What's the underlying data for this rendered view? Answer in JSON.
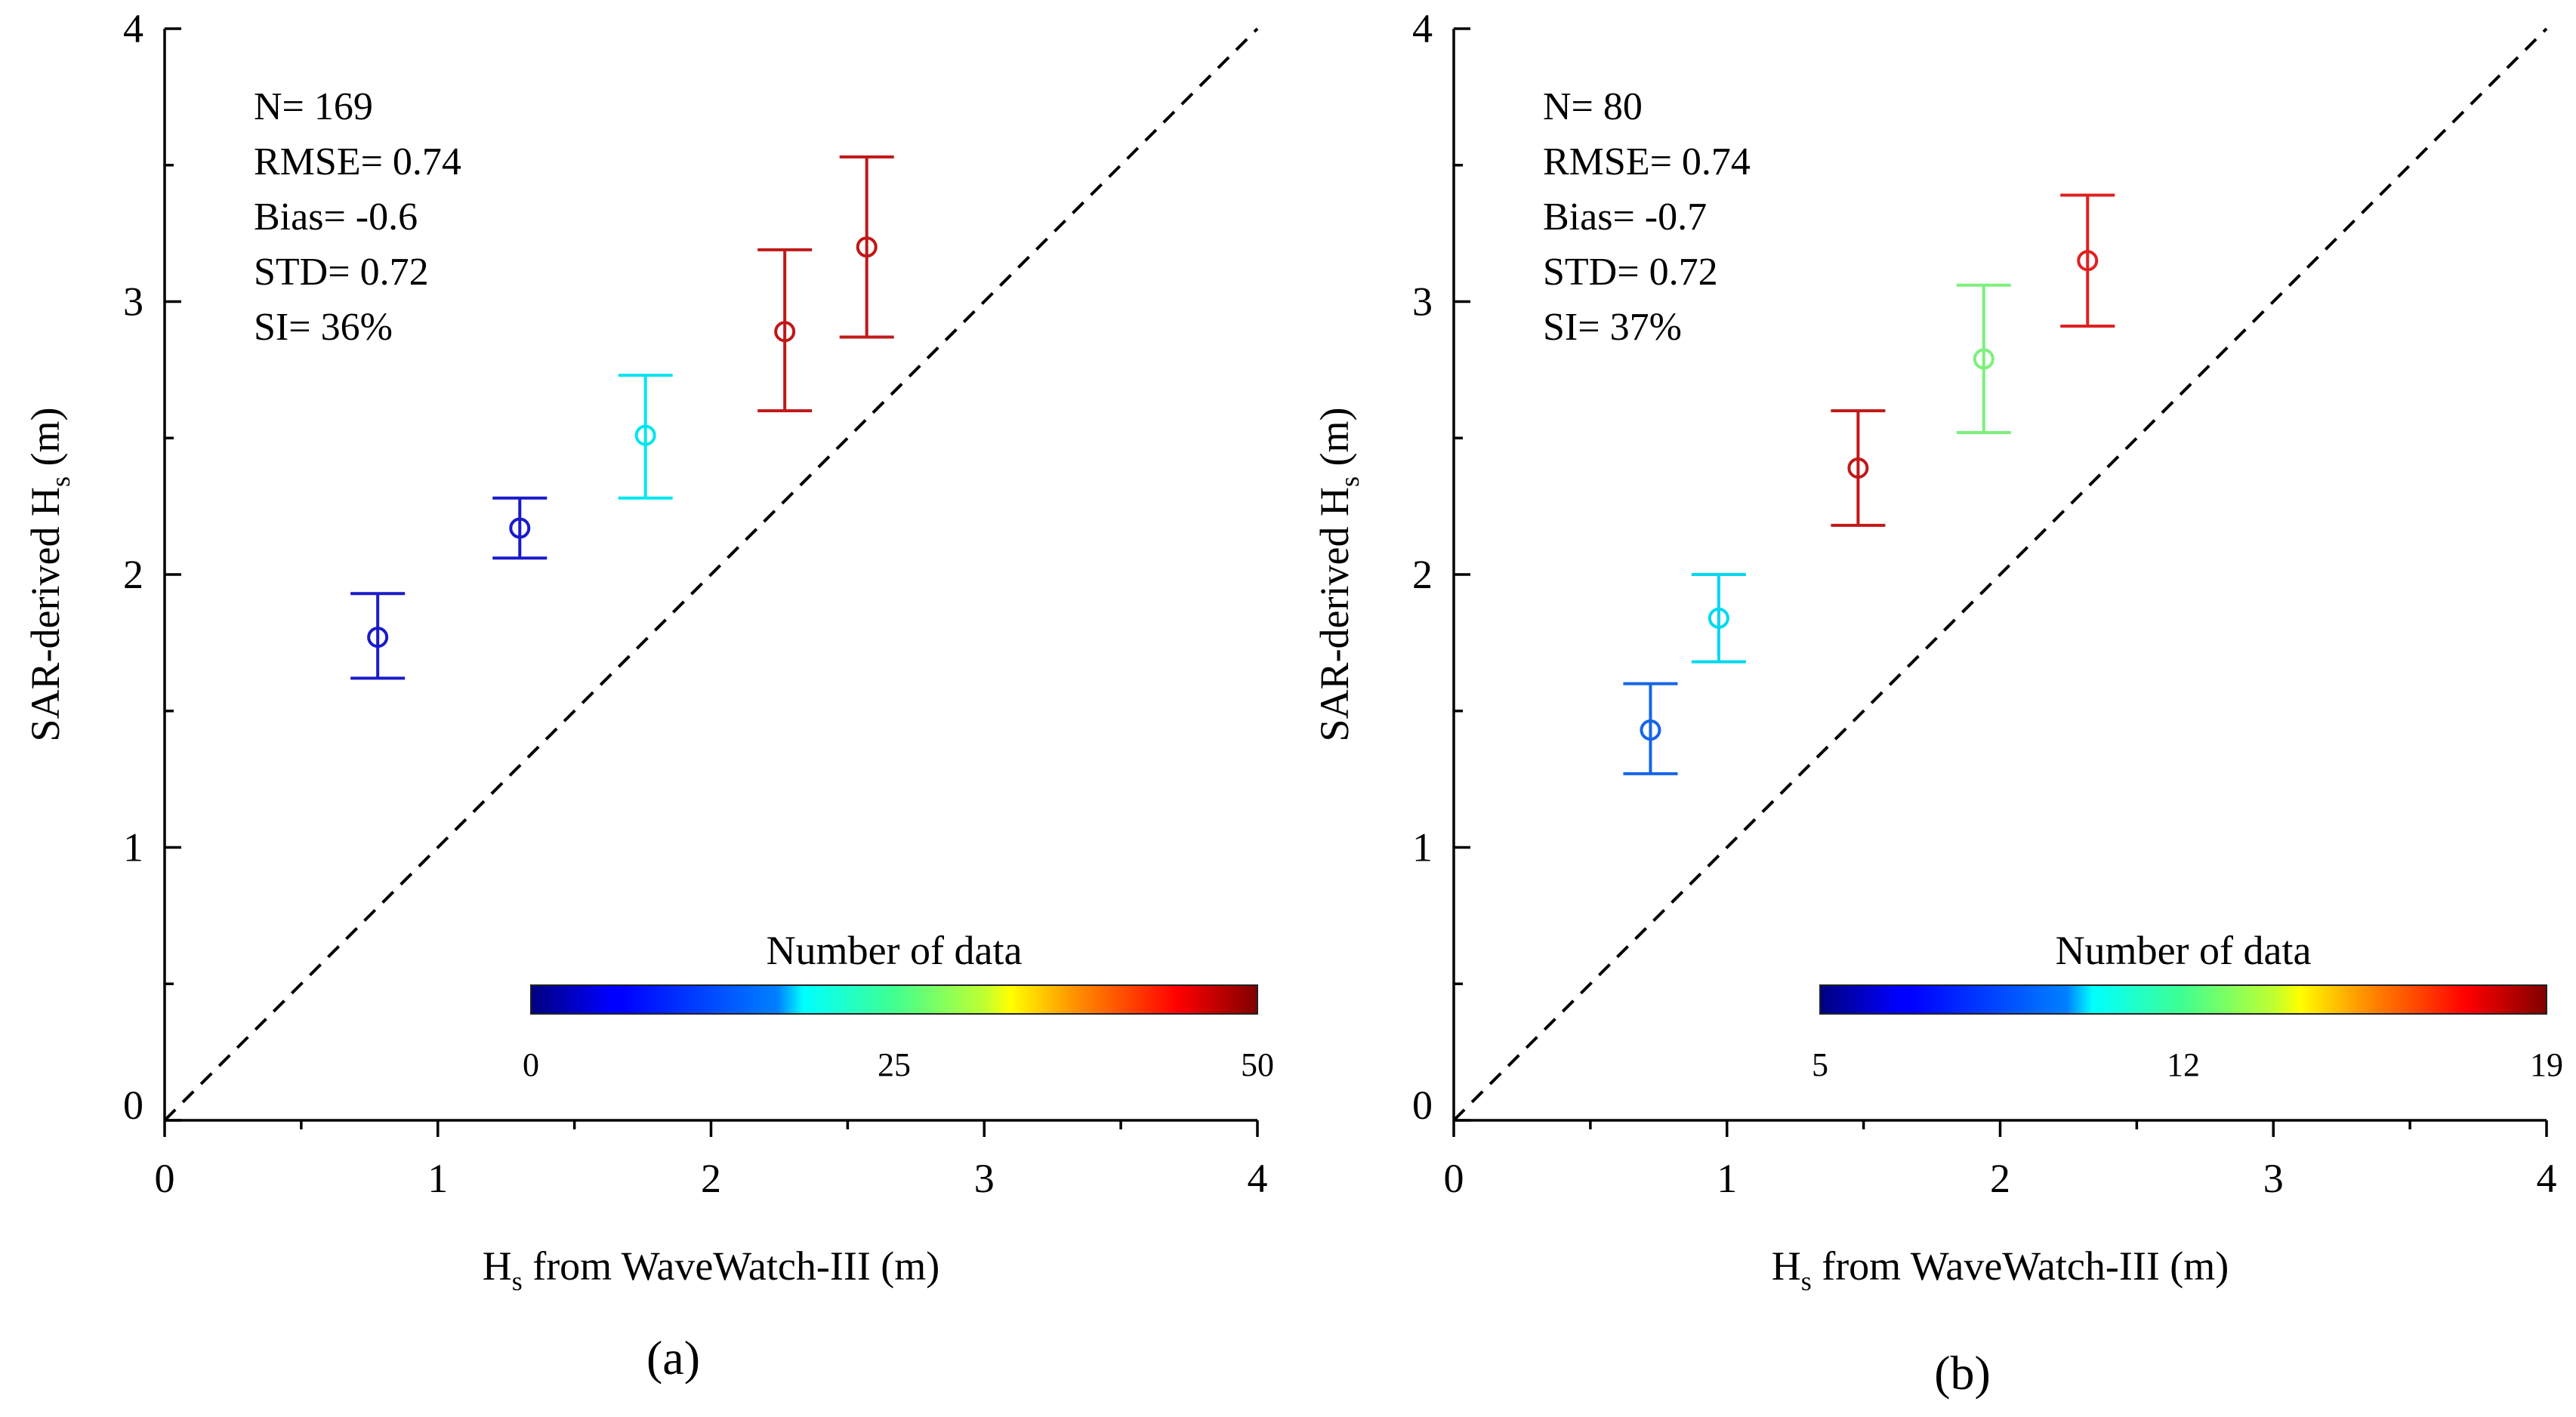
{
  "figure": {
    "xlabel_main": "H",
    "xlabel_sub": "s",
    "xlabel_rest": " from WaveWatch-III (m)",
    "ylabel_main": "SAR-derived H",
    "ylabel_sub": "s",
    "ylabel_rest": " (m)",
    "colorbar_title": "Number of data"
  },
  "chart_data": [
    {
      "type": "scatter",
      "panel_label": "(a)",
      "xlim": [
        0,
        4
      ],
      "ylim": [
        0,
        4
      ],
      "x_ticks": [
        "0",
        "1",
        "2",
        "3",
        "4"
      ],
      "y_ticks": [
        "0",
        "1",
        "2",
        "3",
        "4"
      ],
      "reference_line": "1:1 dashed",
      "stats": [
        "N= 169",
        "RMSE= 0.74",
        "Bias= -0.6",
        "STD= 0.72",
        "SI= 36%"
      ],
      "colorbar": {
        "title": "Number of data",
        "min": 0,
        "max": 50,
        "ticks": [
          "0",
          "25",
          "50"
        ]
      },
      "points": [
        {
          "x": 0.78,
          "y": 1.77,
          "low": 1.62,
          "high": 1.93,
          "color": "#1a1acb"
        },
        {
          "x": 1.3,
          "y": 2.17,
          "low": 2.06,
          "high": 2.28,
          "color": "#1a1acb"
        },
        {
          "x": 1.76,
          "y": 2.51,
          "low": 2.28,
          "high": 2.73,
          "color": "#00e5f0"
        },
        {
          "x": 2.27,
          "y": 2.89,
          "low": 2.6,
          "high": 3.19,
          "color": "#c01818"
        },
        {
          "x": 2.57,
          "y": 3.2,
          "low": 2.87,
          "high": 3.53,
          "color": "#c01818"
        }
      ]
    },
    {
      "type": "scatter",
      "panel_label": "(b)",
      "xlim": [
        0,
        4
      ],
      "ylim": [
        0,
        4
      ],
      "x_ticks": [
        "0",
        "1",
        "2",
        "3",
        "4"
      ],
      "y_ticks": [
        "0",
        "1",
        "2",
        "3",
        "4"
      ],
      "reference_line": "1:1 dashed",
      "stats": [
        "N= 80",
        "RMSE= 0.74",
        "Bias= -0.7",
        "STD= 0.72",
        "SI= 37%"
      ],
      "colorbar": {
        "title": "Number of data",
        "min": 5,
        "max": 19,
        "ticks": [
          "5",
          "12",
          "19"
        ]
      },
      "points": [
        {
          "x": 0.72,
          "y": 1.43,
          "low": 1.27,
          "high": 1.6,
          "color": "#1565e8"
        },
        {
          "x": 0.97,
          "y": 1.84,
          "low": 1.68,
          "high": 2.0,
          "color": "#00d8f0"
        },
        {
          "x": 1.48,
          "y": 2.39,
          "low": 2.18,
          "high": 2.6,
          "color": "#c01818"
        },
        {
          "x": 1.94,
          "y": 2.79,
          "low": 2.52,
          "high": 3.06,
          "color": "#7cf07c"
        },
        {
          "x": 2.32,
          "y": 3.15,
          "low": 2.91,
          "high": 3.39,
          "color": "#e02020"
        }
      ]
    }
  ]
}
